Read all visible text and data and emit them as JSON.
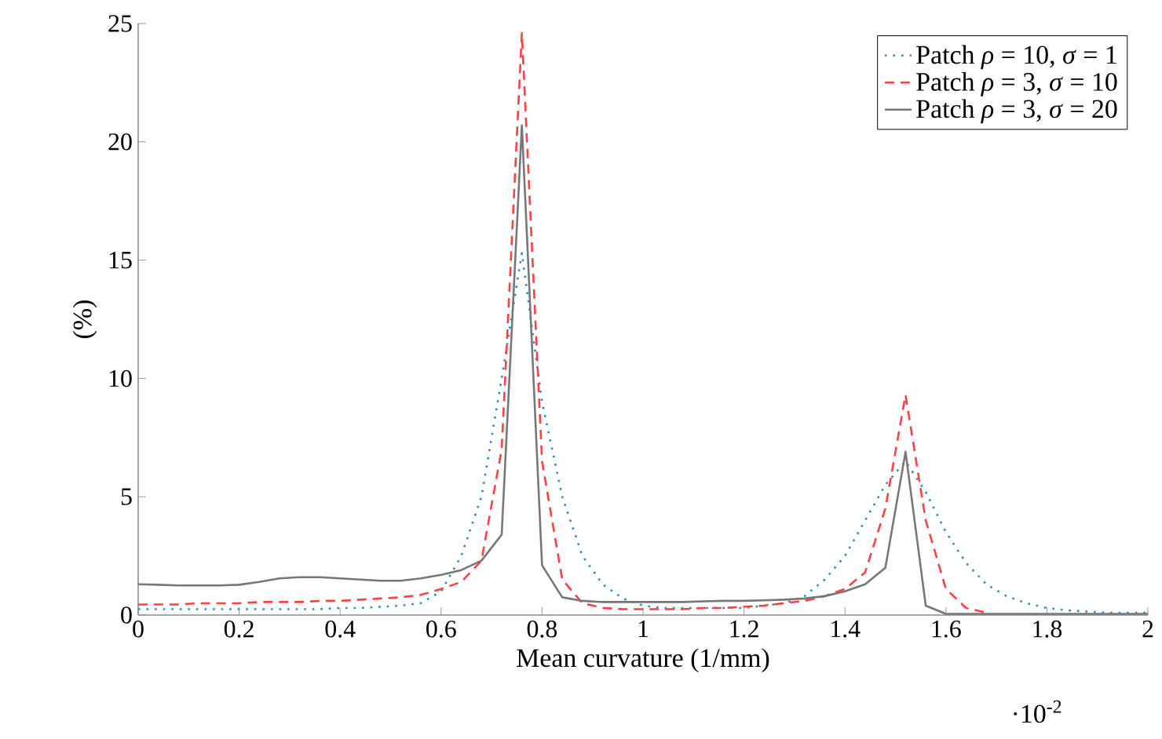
{
  "chart_data": {
    "type": "line",
    "xlabel": "Mean curvature (1/mm)",
    "ylabel": "(%)",
    "annotations": [
      "·10$^{-2}$"
    ],
    "xlim": [
      0,
      2
    ],
    "ylim": [
      0,
      25
    ],
    "xticks": [
      0,
      0.2,
      0.4,
      0.6,
      0.8,
      1,
      1.2,
      1.4,
      1.6,
      1.8,
      2
    ],
    "yticks": [
      0,
      5,
      10,
      15,
      20,
      25
    ],
    "legend": "top right",
    "grid": false,
    "marker": "none",
    "x": [
      0,
      0.04,
      0.08,
      0.12,
      0.16,
      0.2,
      0.24,
      0.28,
      0.32,
      0.36,
      0.4,
      0.44,
      0.48,
      0.52,
      0.56,
      0.6,
      0.64,
      0.68,
      0.72,
      0.76,
      0.8,
      0.84,
      0.88,
      0.92,
      0.96,
      1,
      1.04,
      1.08,
      1.12,
      1.16,
      1.2,
      1.24,
      1.28,
      1.32,
      1.36,
      1.4,
      1.44,
      1.48,
      1.52,
      1.56,
      1.6,
      1.64,
      1.68,
      1.72,
      1.76,
      1.8,
      1.84,
      1.88,
      1.92,
      1.96,
      2
    ],
    "series": [
      {
        "name": "Patch *ρ* = 10, *σ* = 1",
        "color": "#2b8cbe",
        "line_style": "dotted",
        "values": [
          0.25,
          0.25,
          0.25,
          0.25,
          0.25,
          0.25,
          0.25,
          0.25,
          0.25,
          0.25,
          0.3,
          0.3,
          0.35,
          0.4,
          0.5,
          1,
          2.5,
          5,
          10,
          15.3,
          9,
          5,
          2.5,
          1.3,
          0.7,
          0.4,
          0.3,
          0.3,
          0.3,
          0.3,
          0.3,
          0.4,
          0.5,
          0.8,
          1.5,
          2.5,
          4,
          5.5,
          6.5,
          5.2,
          3.5,
          2.2,
          1.3,
          0.8,
          0.5,
          0.3,
          0.2,
          0.15,
          0.1,
          0.1,
          0.1
        ]
      },
      {
        "name": "Patch *ρ* = 3, *σ* = 10",
        "color": "#ff4040",
        "line_style": "dashed",
        "values": [
          0.45,
          0.45,
          0.45,
          0.5,
          0.5,
          0.5,
          0.55,
          0.55,
          0.55,
          0.6,
          0.6,
          0.65,
          0.7,
          0.75,
          0.85,
          1.1,
          1.4,
          2.3,
          7,
          24.6,
          6.5,
          1.5,
          0.5,
          0.3,
          0.25,
          0.25,
          0.25,
          0.25,
          0.3,
          0.3,
          0.35,
          0.4,
          0.5,
          0.6,
          0.8,
          1.1,
          1.8,
          4.5,
          9.3,
          4,
          1.1,
          0.3,
          0.1,
          null,
          null,
          null,
          null,
          null,
          null,
          null,
          null
        ]
      },
      {
        "name": "Patch *ρ* = 3, *σ* = 20",
        "color": "#777777",
        "line_style": "solid",
        "values": [
          1.3,
          1.28,
          1.25,
          1.25,
          1.25,
          1.28,
          1.4,
          1.55,
          1.6,
          1.6,
          1.55,
          1.5,
          1.45,
          1.45,
          1.55,
          1.7,
          1.9,
          2.3,
          3.4,
          20.7,
          2.1,
          0.75,
          0.6,
          0.55,
          0.55,
          0.55,
          0.55,
          0.55,
          0.58,
          0.6,
          0.6,
          0.62,
          0.65,
          0.7,
          0.8,
          1,
          1.3,
          2,
          6.9,
          0.4,
          0.05,
          0.05,
          0.05,
          0.05,
          0.05,
          0.05,
          0.05,
          0.05,
          0.05,
          0.05,
          0.05
        ]
      }
    ]
  }
}
